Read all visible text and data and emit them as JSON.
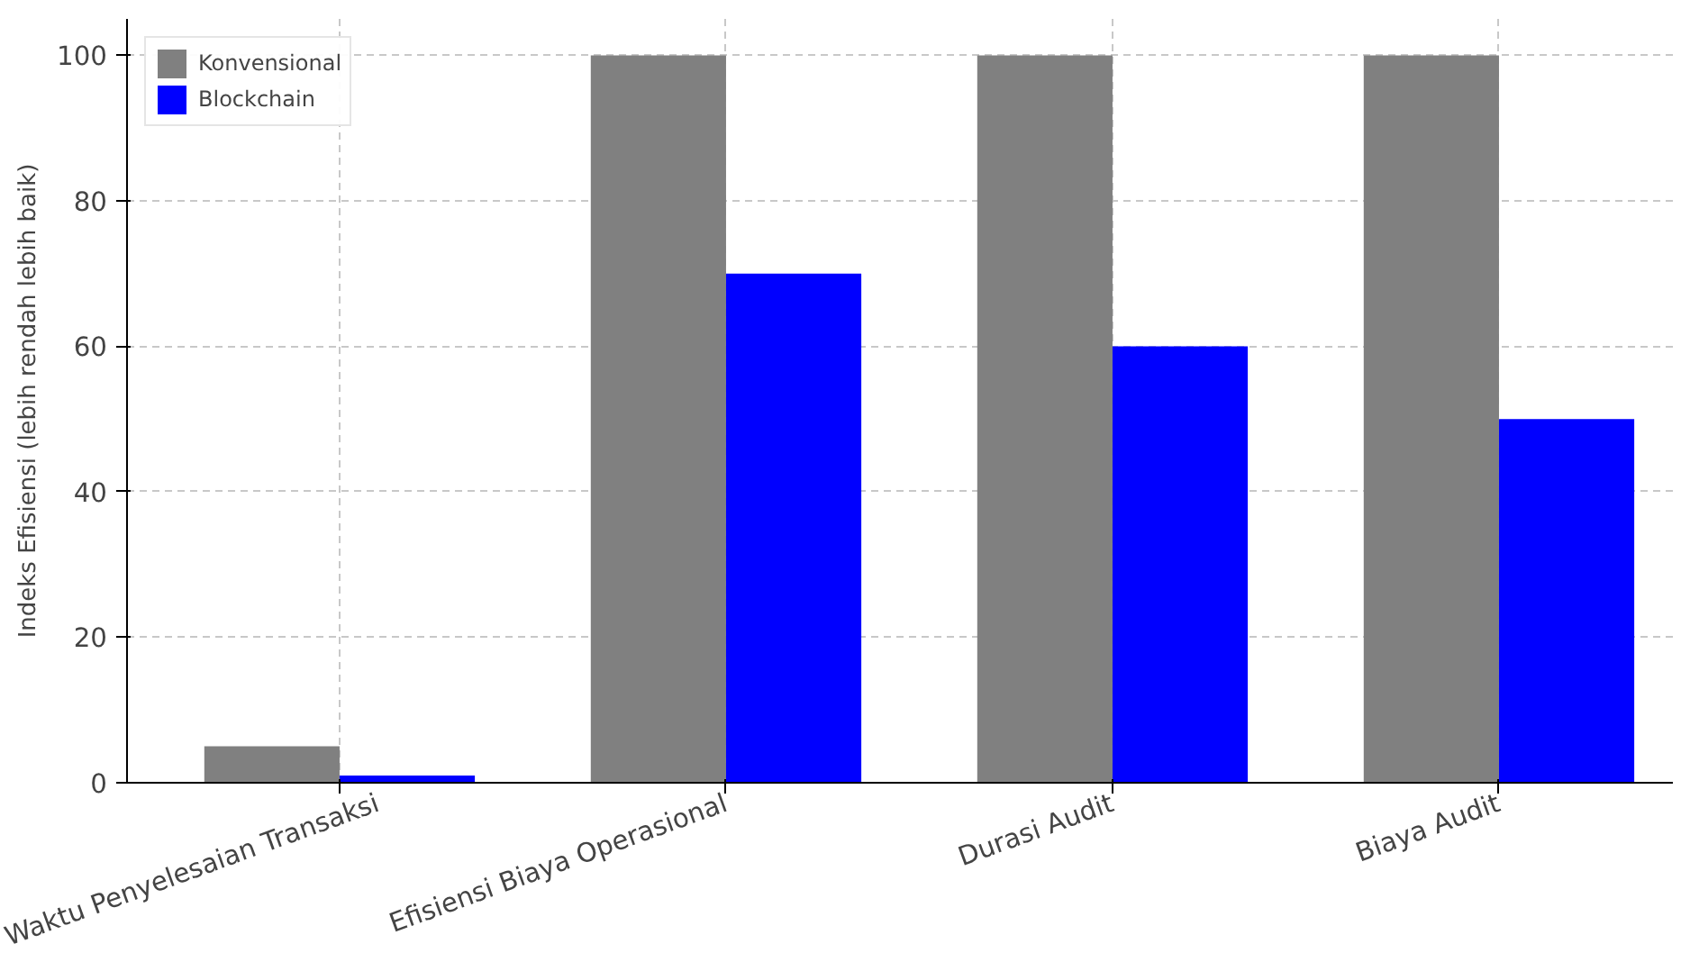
{
  "chart_data": {
    "type": "bar",
    "ylabel": "Indeks Efisiensi (lebih rendah lebih baik)",
    "categories": [
      "Waktu Penyelesaian Transaksi",
      "Efisiensi Biaya Operasional",
      "Durasi Audit",
      "Biaya Audit"
    ],
    "series": [
      {
        "name": "Konvensional",
        "color": "#808080",
        "values": [
          5,
          100,
          100,
          100
        ]
      },
      {
        "name": "Blockchain",
        "color": "#0000ff",
        "values": [
          1,
          70,
          60,
          50
        ]
      }
    ],
    "ylim": [
      0,
      105
    ],
    "yticks": [
      0,
      20,
      40,
      60,
      80,
      100
    ],
    "grid": true,
    "legend": "top left"
  }
}
